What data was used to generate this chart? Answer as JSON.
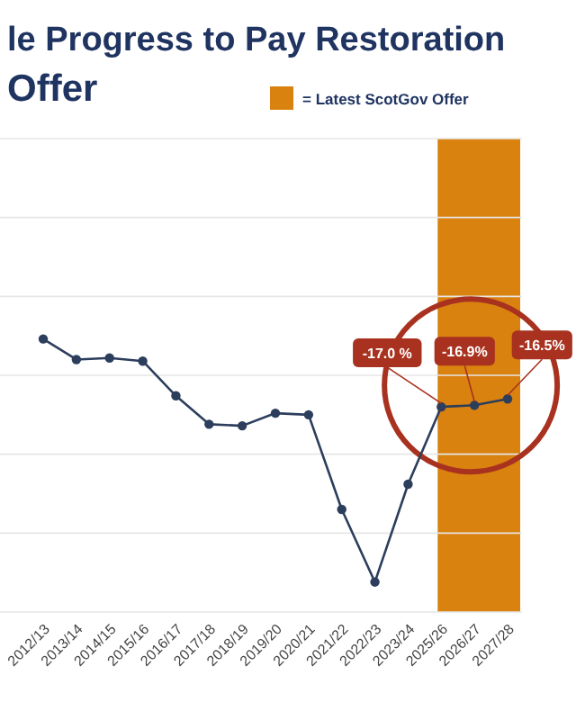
{
  "chart_data": {
    "type": "line",
    "title": "le Progress to Pay Restoration\nOffer",
    "categories": [
      "2012/13",
      "2013/14",
      "2014/15",
      "2015/16",
      "2016/17",
      "2017/18",
      "2018/19",
      "2019/20",
      "2020/21",
      "2021/22",
      "2022/23",
      "2023/24",
      "2025/26",
      "2026/27",
      "2027/28"
    ],
    "series": [
      {
        "color": "#2c3e5c",
        "values": [
          -12.7,
          -14.0,
          -13.9,
          -14.1,
          -16.3,
          -18.1,
          -18.2,
          -17.4,
          -17.5,
          -23.5,
          -28.1,
          -21.9,
          -17.0,
          -16.9,
          -16.5
        ],
        "value_labels": [
          null,
          null,
          null,
          null,
          null,
          null,
          null,
          null,
          null,
          null,
          null,
          null,
          "-17.0 %",
          "-16.9%",
          "-16.5%"
        ]
      }
    ],
    "ylim": [
      -30,
      0
    ],
    "yticks": [
      {
        "value": -30,
        "label": null
      },
      {
        "value": -25,
        "label": null
      },
      {
        "value": -20,
        "label": null
      },
      {
        "value": -15,
        "label": null
      },
      {
        "value": -10,
        "label": null
      },
      {
        "value": -5,
        "label": null
      },
      {
        "value": 0,
        "label": null
      }
    ],
    "tick_labels": "x",
    "grid": "y",
    "marker": "circle",
    "line_style": "solid",
    "bands": [
      {
        "axis": "x",
        "from": "2025/26",
        "to": "2027/28",
        "label": "= Latest ScotGov Offer",
        "color": "#d9820f"
      }
    ]
  }
}
